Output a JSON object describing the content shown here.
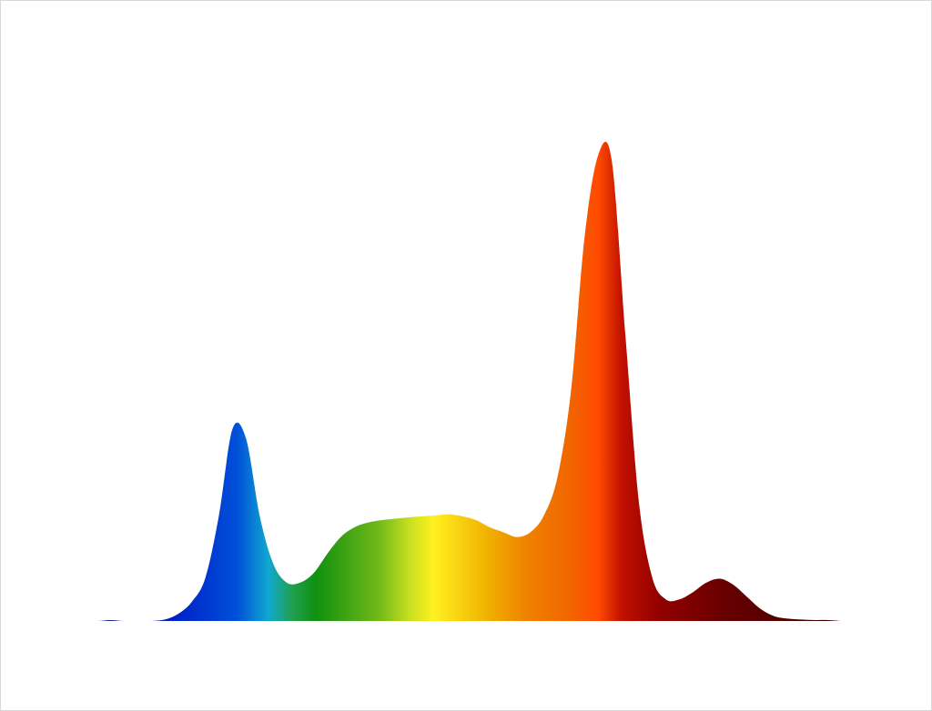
{
  "chart_data": {
    "type": "area",
    "categories": [
      null,
      null,
      null,
      null,
      null,
      null,
      null,
      null,
      null,
      null,
      null,
      null,
      null,
      null,
      null,
      null,
      null,
      null,
      null,
      null,
      null,
      null,
      null,
      null,
      null,
      null,
      null,
      null,
      null,
      null,
      null,
      null,
      null,
      null,
      null,
      null,
      null,
      null,
      null,
      null,
      null,
      null,
      null,
      null,
      null,
      null,
      null,
      null,
      null,
      null,
      null,
      null,
      null,
      null,
      null,
      null,
      null,
      null,
      null
    ],
    "values": [
      0,
      0,
      0,
      0,
      0.2,
      0,
      0,
      0,
      0.3,
      1.5,
      4,
      9,
      22,
      40,
      38,
      22,
      12,
      8,
      8,
      10,
      14,
      17.5,
      19.5,
      20.5,
      21,
      21.3,
      21.6,
      21.8,
      22,
      22.2,
      21.8,
      21,
      19.5,
      18.5,
      17.5,
      18.5,
      22,
      30,
      48,
      80,
      97,
      96,
      60,
      25,
      9,
      4.5,
      4.5,
      6,
      8,
      8.8,
      7.5,
      5,
      2.5,
      1,
      0.5,
      0.3,
      0.2,
      0.2,
      0
    ],
    "ylim": [
      0,
      100
    ],
    "gradient_colors": [
      "#1a1a5a",
      "#0020c8",
      "#0050d8",
      "#10a8d0",
      "#20a050",
      "#109010",
      "#70b818",
      "#c8e020",
      "#fff020",
      "#f0b000",
      "#f08000",
      "#f06800",
      "#ff4a00",
      "#c01000",
      "#900000",
      "#680000",
      "#3a0000"
    ]
  }
}
